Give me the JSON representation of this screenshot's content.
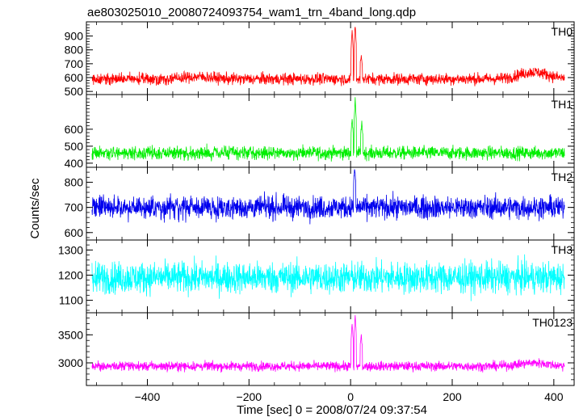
{
  "chart_data": {
    "type": "line",
    "title": "ae803025010_20080724093754_wam1_trn_4band_long.qdp",
    "xlabel": "Time [sec] 0 = 2008/07/24 09:37:54",
    "ylabel": "Counts/sec",
    "xlim": [
      -520,
      440
    ],
    "xticks": [
      -400,
      -200,
      0,
      200,
      400
    ],
    "panels": [
      {
        "name": "TH0",
        "color": "#ff0000",
        "ylim": [
          495,
          985
        ],
        "yticks": [
          500,
          600,
          700,
          800,
          900
        ],
        "baseline": 590,
        "noise": 30,
        "flares": [
          {
            "t": 3,
            "peak": 940
          },
          {
            "t": 9,
            "peak": 985
          },
          {
            "t": 21,
            "peak": 760
          }
        ],
        "bumps": [
          {
            "t": 360,
            "amp": 50,
            "width": 40
          },
          {
            "t": -300,
            "amp": 15,
            "width": 40
          }
        ]
      },
      {
        "name": "TH1",
        "color": "#00ee00",
        "ylim": [
          390,
          790
        ],
        "yticks": [
          400,
          500,
          600
        ],
        "baseline": 460,
        "noise": 28,
        "flares": [
          {
            "t": 3,
            "peak": 650
          },
          {
            "t": 9,
            "peak": 780
          },
          {
            "t": 22,
            "peak": 640
          }
        ],
        "bumps": []
      },
      {
        "name": "TH2",
        "color": "#0000ee",
        "ylim": [
          580,
          850
        ],
        "yticks": [
          600,
          700,
          800
        ],
        "baseline": 700,
        "noise": 32,
        "flares": [
          {
            "t": 8,
            "peak": 850
          }
        ],
        "bumps": []
      },
      {
        "name": "TH3",
        "color": "#00ffff",
        "ylim": [
          1060,
          1330
        ],
        "yticks": [
          1100,
          1200,
          1300
        ],
        "baseline": 1190,
        "noise": 45,
        "flares": [],
        "bumps": []
      },
      {
        "name": "TH0123",
        "color": "#ff00ff",
        "ylim": [
          2640,
          3850
        ],
        "yticks": [
          3000,
          3500
        ],
        "baseline": 2940,
        "noise": 60,
        "flares": [
          {
            "t": 3,
            "peak": 3700
          },
          {
            "t": 9,
            "peak": 3850
          },
          {
            "t": 21,
            "peak": 3500
          }
        ],
        "bumps": [
          {
            "t": 360,
            "amp": 60,
            "width": 40
          }
        ]
      }
    ]
  }
}
